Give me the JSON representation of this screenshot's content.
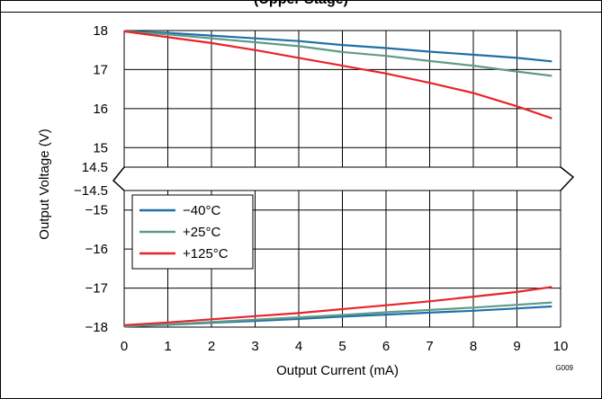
{
  "title": "(Upper Stage)",
  "figure_code": "G009",
  "colors": {
    "neg40": "#1f6fa8",
    "pos25": "#5f9b86",
    "pos125": "#e8242a",
    "grid": "#000000",
    "background": "#ffffff"
  },
  "chart_data": {
    "type": "line",
    "xlabel": "Output Current (mA)",
    "ylabel": "Output Voltage (V)",
    "xlim": [
      0,
      10
    ],
    "x_ticks": [
      "0",
      "1",
      "2",
      "3",
      "4",
      "5",
      "6",
      "7",
      "8",
      "9",
      "10"
    ],
    "upper_panel": {
      "ylim": [
        14.5,
        18
      ],
      "y_ticks": [
        "18",
        "17",
        "16",
        "15",
        "14.5"
      ]
    },
    "lower_panel": {
      "ylim": [
        -18,
        -14.5
      ],
      "y_ticks": [
        "−14.5",
        "−15",
        "−16",
        "−17",
        "−18"
      ]
    },
    "legend_position": "upper-left of lower panel",
    "grid": true,
    "series": [
      {
        "name": "−40°C",
        "color_key": "neg40",
        "upper": {
          "x": [
            0,
            1,
            2,
            3,
            4,
            5,
            6,
            7,
            8,
            9,
            9.8
          ],
          "y": [
            17.98,
            17.94,
            17.87,
            17.8,
            17.73,
            17.63,
            17.55,
            17.46,
            17.38,
            17.3,
            17.21
          ]
        },
        "lower": {
          "x": [
            0,
            1,
            2,
            3,
            4,
            5,
            6,
            7,
            8,
            9,
            9.8
          ],
          "y": [
            -17.98,
            -17.94,
            -17.89,
            -17.84,
            -17.79,
            -17.73,
            -17.68,
            -17.63,
            -17.58,
            -17.52,
            -17.47
          ]
        }
      },
      {
        "name": "+25°C",
        "color_key": "pos25",
        "upper": {
          "x": [
            0,
            1,
            2,
            3,
            4,
            5,
            6,
            7,
            8,
            9,
            9.8
          ],
          "y": [
            17.98,
            17.9,
            17.8,
            17.7,
            17.6,
            17.45,
            17.35,
            17.22,
            17.1,
            16.95,
            16.84
          ]
        },
        "lower": {
          "x": [
            0,
            1,
            2,
            3,
            4,
            5,
            6,
            7,
            8,
            9,
            9.8
          ],
          "y": [
            -17.98,
            -17.93,
            -17.87,
            -17.81,
            -17.75,
            -17.69,
            -17.62,
            -17.56,
            -17.5,
            -17.43,
            -17.37
          ]
        }
      },
      {
        "name": "+125°C",
        "color_key": "pos125",
        "upper": {
          "x": [
            0,
            1,
            2,
            3,
            4,
            5,
            6,
            7,
            8,
            9,
            9.8
          ],
          "y": [
            17.98,
            17.83,
            17.68,
            17.5,
            17.3,
            17.1,
            16.9,
            16.66,
            16.4,
            16.06,
            15.75
          ]
        },
        "lower": {
          "x": [
            0,
            1,
            2,
            3,
            4,
            5,
            6,
            7,
            8,
            9,
            9.8
          ],
          "y": [
            -17.95,
            -17.88,
            -17.8,
            -17.72,
            -17.64,
            -17.54,
            -17.44,
            -17.34,
            -17.22,
            -17.1,
            -16.97
          ]
        }
      }
    ]
  }
}
